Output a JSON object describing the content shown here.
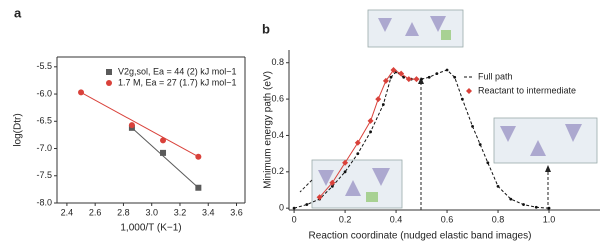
{
  "chart_data": [
    {
      "type": "scatter",
      "label": "a",
      "x_label": "1,000/T (K−1)",
      "y_label": "log(Dtr)",
      "xlim": [
        2.33,
        3.66
      ],
      "ylim": [
        -8.0,
        -5.32
      ],
      "xticks": [
        2.4,
        2.6,
        2.8,
        {
          "value": 3,
          "label": "3.0"
        },
        3.2,
        3.4,
        3.6
      ],
      "yticks": [
        -5.5,
        {
          "value": -6,
          "label": "-6.0"
        },
        -6.5,
        {
          "value": -7,
          "label": "-7.0"
        },
        -7.5,
        {
          "value": -8,
          "label": "-8.0"
        }
      ],
      "series": [
        {
          "name": "V2g,sol, Ea = 44 (2) kJ mol−1",
          "color": "#5a5a5a",
          "marker": "square",
          "x": [
            2.86,
            3.08,
            3.33
          ],
          "values": [
            -6.62,
            -7.08,
            -7.72
          ]
        },
        {
          "name": "1.7 M, Ea = 27 (1.7) kJ mol−1",
          "color": "#d9413a",
          "marker": "circle",
          "x": [
            2.5,
            2.86,
            3.08,
            3.33
          ],
          "values": [
            -5.97,
            -6.57,
            -6.85,
            -7.15
          ]
        }
      ]
    },
    {
      "type": "line",
      "label": "b",
      "x_label": "Reaction coordinate (nudged elastic band images)",
      "y_label": "Minimum energy path (eV)",
      "xlim": [
        -0.02,
        1.2
      ],
      "ylim": [
        -0.01,
        0.87
      ],
      "xticks": [
        0,
        0.2,
        0.4,
        0.6,
        0.8,
        {
          "value": 1,
          "label": "1.0"
        }
      ],
      "yticks": [
        0,
        0.2,
        0.4,
        0.6,
        0.8
      ],
      "series": [
        {
          "name": "Full path",
          "color": "#111111",
          "marker": "dot",
          "dashed": true,
          "x": [
            0,
            0.05,
            0.1,
            0.15,
            0.2,
            0.25,
            0.3,
            0.35,
            0.38,
            0.4,
            0.43,
            0.46,
            0.5,
            0.53,
            0.56,
            0.6,
            0.63,
            0.66,
            0.7,
            0.73,
            0.76,
            0.8,
            0.85,
            0.9,
            0.95,
            1
          ],
          "values": [
            0,
            0.02,
            0.05,
            0.12,
            0.2,
            0.3,
            0.42,
            0.57,
            0.72,
            0.75,
            0.72,
            0.71,
            0.71,
            0.72,
            0.74,
            0.76,
            0.72,
            0.6,
            0.45,
            0.35,
            0.25,
            0.12,
            0.05,
            0.02,
            0.005,
            0
          ]
        },
        {
          "name": "Reactant to intermediate",
          "color": "#d9413a",
          "marker": "diamond",
          "dashed": false,
          "x": [
            0.1,
            0.15,
            0.2,
            0.25,
            0.3,
            0.33,
            0.36,
            0.39,
            0.42,
            0.45,
            0.48
          ],
          "values": [
            0.06,
            0.14,
            0.25,
            0.36,
            0.48,
            0.6,
            0.7,
            0.76,
            0.74,
            0.71,
            0.71
          ]
        }
      ]
    }
  ]
}
